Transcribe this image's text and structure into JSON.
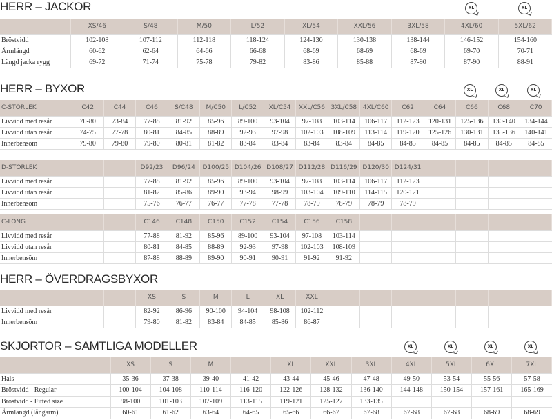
{
  "jackor": {
    "title": "HERR – JACKOR",
    "header": [
      "",
      "XS/46",
      "S/48",
      "M/50",
      "L/52",
      "XL/54",
      "XXL/56",
      "3XL/58",
      "4XL/60",
      "5XL/62"
    ],
    "rows": [
      [
        "Bröstvidd",
        "102-108",
        "107-112",
        "112-118",
        "118-124",
        "124-130",
        "130-138",
        "138-144",
        "146-152",
        "154-160"
      ],
      [
        "Ärmlängd",
        "60-62",
        "62-64",
        "64-66",
        "66-68",
        "68-69",
        "68-69",
        "68-69",
        "69-70",
        "70-71"
      ],
      [
        "Längd jacka rygg",
        "69-72",
        "71-74",
        "75-78",
        "79-82",
        "83-86",
        "85-88",
        "87-90",
        "87-90",
        "88-91"
      ]
    ],
    "icons": [
      "xl-icon",
      "xl-icon"
    ]
  },
  "byxor": {
    "title": "HERR – BYXOR",
    "icons": [
      "xl-icon",
      "xl-icon",
      "xl-icon"
    ],
    "c_storlek": {
      "header": [
        "C-STORLEK",
        "C42",
        "C44",
        "C46",
        "S/C48",
        "M/C50",
        "L/C52",
        "XL/C54",
        "XXL/C56",
        "3XL/C58",
        "4XL/C60",
        "C62",
        "C64",
        "C66",
        "C68",
        "C70"
      ],
      "rows": [
        [
          "Livvidd med resår",
          "70-80",
          "73-84",
          "77-88",
          "81-92",
          "85-96",
          "89-100",
          "93-104",
          "97-108",
          "103-114",
          "106-117",
          "112-123",
          "120-131",
          "125-136",
          "130-140",
          "134-144"
        ],
        [
          "Livvidd utan resår",
          "74-75",
          "77-78",
          "80-81",
          "84-85",
          "88-89",
          "92-93",
          "97-98",
          "102-103",
          "108-109",
          "113-114",
          "119-120",
          "125-126",
          "130-131",
          "135-136",
          "140-141"
        ],
        [
          "Innerbensöm",
          "79-80",
          "79-80",
          "79-80",
          "80-81",
          "81-82",
          "83-84",
          "83-84",
          "83-84",
          "83-84",
          "84-85",
          "84-85",
          "84-85",
          "84-85",
          "84-85",
          "84-85"
        ]
      ]
    },
    "d_storlek": {
      "header": [
        "D-STORLEK",
        "",
        "",
        "D92/23",
        "D96/24",
        "D100/25",
        "D104/26",
        "D108/27",
        "D112/28",
        "D116/29",
        "D120/30",
        "D124/31",
        "",
        "",
        "",
        ""
      ],
      "rows": [
        [
          "Livvidd med resår",
          "",
          "",
          "77-88",
          "81-92",
          "85-96",
          "89-100",
          "93-104",
          "97-108",
          "103-114",
          "106-117",
          "112-123",
          "",
          "",
          "",
          ""
        ],
        [
          "Livvidd utan resår",
          "",
          "",
          "81-82",
          "85-86",
          "89-90",
          "93-94",
          "98-99",
          "103-104",
          "109-110",
          "114-115",
          "120-121",
          "",
          "",
          "",
          ""
        ],
        [
          "Innerbensöm",
          "",
          "",
          "75-76",
          "76-77",
          "76-77",
          "77-78",
          "77-78",
          "78-79",
          "78-79",
          "78-79",
          "78-79",
          "",
          "",
          "",
          ""
        ]
      ]
    },
    "c_long": {
      "header": [
        "C-LONG",
        "",
        "",
        "C146",
        "C148",
        "C150",
        "C152",
        "C154",
        "C156",
        "C158",
        "",
        "",
        "",
        "",
        "",
        ""
      ],
      "rows": [
        [
          "Livvidd med resår",
          "",
          "",
          "77-88",
          "81-92",
          "85-96",
          "89-100",
          "93-104",
          "97-108",
          "103-114",
          "",
          "",
          "",
          "",
          "",
          ""
        ],
        [
          "Livvidd utan resår",
          "",
          "",
          "80-81",
          "84-85",
          "88-89",
          "92-93",
          "97-98",
          "102-103",
          "108-109",
          "",
          "",
          "",
          "",
          "",
          ""
        ],
        [
          "Innerbensöm",
          "",
          "",
          "87-88",
          "88-89",
          "89-90",
          "90-91",
          "90-91",
          "91-92",
          "91-92",
          "",
          "",
          "",
          "",
          "",
          ""
        ]
      ]
    }
  },
  "overdragsbyxor": {
    "title": "HERR – ÖVERDRAGSBYXOR",
    "header": [
      "",
      "",
      "",
      "XS",
      "S",
      "M",
      "L",
      "XL",
      "XXL",
      "",
      "",
      "",
      "",
      "",
      "",
      ""
    ],
    "rows": [
      [
        "Livvidd med resår",
        "",
        "",
        "82-92",
        "86-96",
        "90-100",
        "94-104",
        "98-108",
        "102-112",
        "",
        "",
        "",
        "",
        "",
        "",
        ""
      ],
      [
        "Innerbensöm",
        "",
        "",
        "79-80",
        "81-82",
        "83-84",
        "84-85",
        "85-86",
        "86-87",
        "",
        "",
        "",
        "",
        "",
        "",
        ""
      ]
    ]
  },
  "skjortor": {
    "title": "SKJORTOR – SAMTLIGA MODELLER",
    "icons": [
      "xl-icon",
      "xl-icon",
      "xl-icon",
      "xl-icon"
    ],
    "header": [
      "",
      "XS",
      "S",
      "M",
      "L",
      "XL",
      "XXL",
      "3XL",
      "4XL",
      "5XL",
      "6XL",
      "7XL"
    ],
    "rows": [
      [
        "Hals",
        "35-36",
        "37-38",
        "39-40",
        "41-42",
        "43-44",
        "45-46",
        "47-48",
        "49-50",
        "53-54",
        "55-56",
        "57-58"
      ],
      [
        "Bröstvidd - Regular",
        "100-104",
        "104-108",
        "110-114",
        "116-120",
        "122-126",
        "128-132",
        "136-140",
        "144-148",
        "150-154",
        "157-161",
        "165-169"
      ],
      [
        "Bröstvidd -  Fitted size",
        "98-100",
        "101-103",
        "107-109",
        "113-115",
        "119-121",
        "125-127",
        "133-135",
        "",
        "",
        "",
        ""
      ],
      [
        "Ärmlängd (långärm)",
        "60-61",
        "61-62",
        "63-64",
        "64-65",
        "65-66",
        "66-67",
        "67-68",
        "67-68",
        "67-68",
        "68-69",
        "68-69"
      ]
    ]
  },
  "icon_text": "XL"
}
